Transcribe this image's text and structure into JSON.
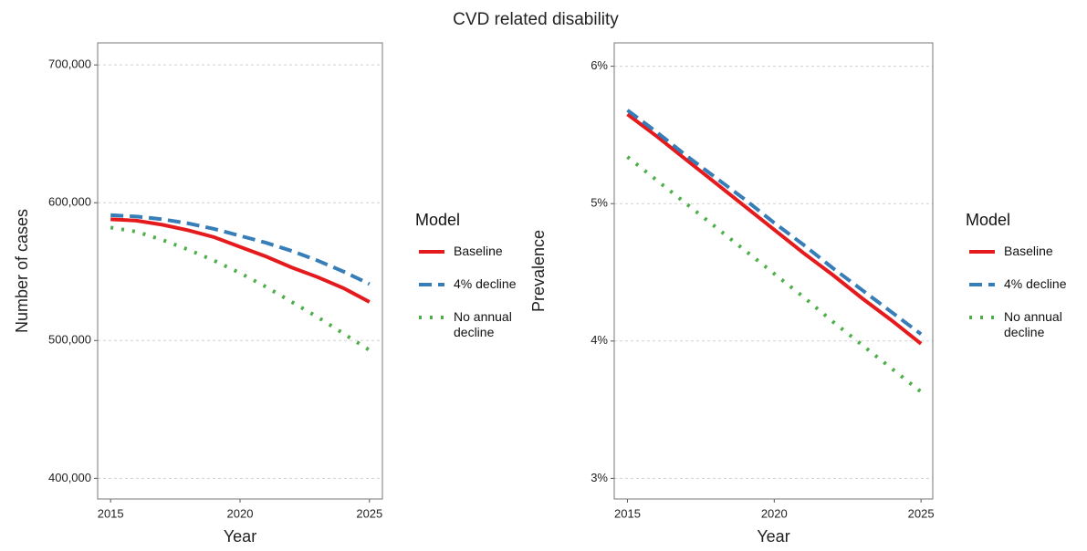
{
  "title": "CVD related disability",
  "chart_data": [
    {
      "type": "line",
      "x_label": "Year",
      "y_label": "Number of cases",
      "x": [
        2015,
        2016,
        2017,
        2018,
        2019,
        2020,
        2021,
        2022,
        2023,
        2024,
        2025
      ],
      "xlim": [
        2014.5,
        2025.5
      ],
      "xticks": [
        2015,
        2020,
        2025
      ],
      "ylim": [
        385000,
        716000
      ],
      "yticks": [
        {
          "value": 400000,
          "label": "400,000"
        },
        {
          "value": 500000,
          "label": "500,000"
        },
        {
          "value": 600000,
          "label": "600,000"
        },
        {
          "value": 700000,
          "label": "700,000"
        }
      ],
      "grid": true,
      "legend_title": "Model",
      "series": [
        {
          "name": "Baseline",
          "color": "#e41a1c",
          "dash": "solid",
          "values": [
            588000,
            587000,
            584000,
            580000,
            575000,
            568000,
            561000,
            553000,
            546000,
            538000,
            528000
          ]
        },
        {
          "name": "4% decline",
          "color": "#377eb8",
          "dash": "dashed",
          "values": [
            591000,
            590000,
            588000,
            585000,
            581000,
            576000,
            571000,
            565000,
            558000,
            550000,
            541000
          ]
        },
        {
          "name": "No annual decline",
          "color": "#4daf4a",
          "dash": "dotted",
          "values": [
            582000,
            579000,
            573000,
            566000,
            558000,
            549000,
            539000,
            528000,
            517000,
            505000,
            493000
          ]
        }
      ]
    },
    {
      "type": "line",
      "x_label": "Year",
      "y_label": "Prevalence",
      "x": [
        2015,
        2016,
        2017,
        2018,
        2019,
        2020,
        2021,
        2022,
        2023,
        2024,
        2025
      ],
      "xlim": [
        2014.55,
        2025.4
      ],
      "xticks": [
        2015,
        2020,
        2025
      ],
      "ylim": [
        2.85,
        6.17
      ],
      "yticks": [
        {
          "value": 3,
          "label": "3%"
        },
        {
          "value": 4,
          "label": "4%"
        },
        {
          "value": 5,
          "label": "5%"
        },
        {
          "value": 6,
          "label": "6%"
        }
      ],
      "grid": true,
      "legend_title": "Model",
      "series": [
        {
          "name": "Baseline",
          "color": "#e41a1c",
          "dash": "solid",
          "values": [
            5.65,
            5.49,
            5.32,
            5.15,
            4.98,
            4.81,
            4.64,
            4.48,
            4.31,
            4.15,
            3.98
          ]
        },
        {
          "name": "4% decline",
          "color": "#377eb8",
          "dash": "dashed",
          "values": [
            5.68,
            5.52,
            5.35,
            5.19,
            5.03,
            4.86,
            4.7,
            4.53,
            4.37,
            4.21,
            4.05
          ]
        },
        {
          "name": "No annual decline",
          "color": "#4daf4a",
          "dash": "dotted",
          "values": [
            5.34,
            5.17,
            5.0,
            4.83,
            4.66,
            4.49,
            4.32,
            4.14,
            3.97,
            3.8,
            3.63
          ]
        }
      ]
    }
  ]
}
